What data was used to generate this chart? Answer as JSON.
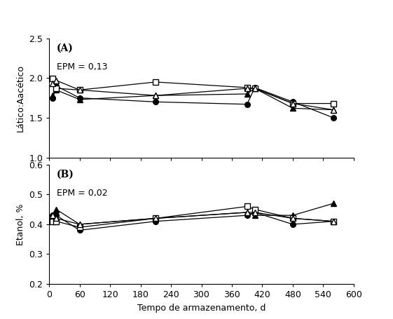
{
  "x": [
    7,
    14,
    60,
    210,
    390,
    405,
    480,
    560
  ],
  "panel_A": {
    "label": "(A)",
    "epm": "EPM = 0,13",
    "ylabel": "Lático:Aacético",
    "ylim": [
      1.0,
      2.5
    ],
    "yticks": [
      1.0,
      1.5,
      2.0,
      2.5
    ],
    "series": {
      "circle_filled": [
        1.75,
        1.9,
        1.75,
        1.7,
        1.67,
        1.88,
        1.7,
        1.5
      ],
      "triangle_filled": [
        1.78,
        1.85,
        1.73,
        1.78,
        1.8,
        1.87,
        1.62,
        1.6
      ],
      "square_open": [
        1.99,
        1.87,
        1.85,
        1.95,
        1.88,
        1.87,
        1.68,
        1.68
      ],
      "triangle_open": [
        1.93,
        1.97,
        1.85,
        1.78,
        1.87,
        1.87,
        1.68,
        1.6
      ]
    }
  },
  "panel_B": {
    "label": "(B)",
    "epm": "EPM = 0,02",
    "ylabel": "Etanol, %",
    "ylim": [
      0.2,
      0.6
    ],
    "yticks": [
      0.2,
      0.3,
      0.4,
      0.5,
      0.6
    ],
    "series": {
      "circle_filled": [
        0.43,
        0.43,
        0.38,
        0.41,
        0.43,
        0.44,
        0.4,
        0.41
      ],
      "triangle_filled": [
        0.42,
        0.45,
        0.4,
        0.42,
        0.44,
        0.43,
        0.43,
        0.47
      ],
      "square_open": [
        0.41,
        0.41,
        0.39,
        0.42,
        0.46,
        0.45,
        0.42,
        0.41
      ],
      "triangle_open": [
        0.43,
        0.42,
        0.4,
        0.42,
        0.44,
        0.44,
        0.42,
        0.41
      ]
    }
  },
  "xlabel": "Tempo de armazenamento, d",
  "xlim": [
    0,
    580
  ],
  "xticks": [
    0,
    60,
    120,
    180,
    240,
    300,
    360,
    420,
    480,
    540,
    600
  ],
  "xtick_labels": [
    "0",
    "60",
    "120",
    "180",
    "240",
    "300",
    "360",
    "420",
    "480",
    "540",
    "600"
  ],
  "line_color": "#000000",
  "bg_color": "#ffffff"
}
